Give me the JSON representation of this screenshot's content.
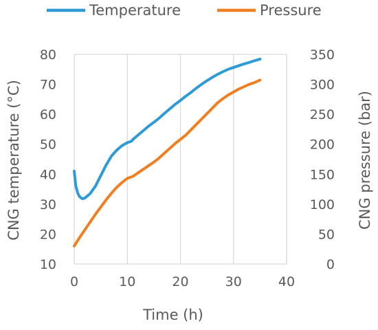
{
  "chart_data": {
    "type": "line",
    "title": "",
    "xlabel": "Time (h)",
    "ylabel": "CNG temperature (°C)",
    "y2label": "CNG pressure (bar)",
    "xlim": [
      0,
      40
    ],
    "ylim": [
      10,
      80
    ],
    "y2lim": [
      0,
      350
    ],
    "xticks": [
      "0",
      "10",
      "20",
      "30",
      "40"
    ],
    "yticks": [
      "10",
      "20",
      "30",
      "40",
      "50",
      "60",
      "70",
      "80"
    ],
    "y2ticks": [
      "0",
      "50",
      "100",
      "150",
      "200",
      "250",
      "300",
      "350"
    ],
    "grid": "vertical",
    "legend_position": "top",
    "series": [
      {
        "name": "Temperature",
        "axis": "left",
        "color": "#2e9ad6",
        "x": [
          0,
          0.3,
          0.7,
          1,
          1.5,
          2,
          3,
          4,
          5,
          6,
          7,
          8,
          9,
          10,
          10.8,
          11,
          12,
          13,
          14,
          15,
          16,
          17,
          18,
          19,
          20,
          21,
          22,
          23,
          24,
          25,
          26,
          27,
          28,
          29,
          30,
          31,
          32,
          33,
          34,
          35
        ],
        "y": [
          41,
          36,
          33.5,
          32.5,
          31.8,
          32,
          33.5,
          36,
          39.5,
          43,
          46,
          48,
          49.5,
          50.5,
          51,
          51.5,
          53,
          54.5,
          56,
          57.3,
          58.7,
          60.3,
          61.8,
          63.3,
          64.6,
          66,
          67.3,
          68.7,
          70,
          71.2,
          72.3,
          73.3,
          74.2,
          75,
          75.6,
          76.2,
          76.8,
          77.3,
          77.9,
          78.4
        ]
      },
      {
        "name": "Pressure",
        "axis": "right",
        "color": "#f07f22",
        "x": [
          0,
          1,
          2,
          3,
          4,
          5,
          6,
          7,
          8,
          9,
          10,
          11,
          12,
          13,
          14,
          15,
          16,
          17,
          18,
          19,
          20,
          21,
          22,
          23,
          24,
          25,
          26,
          27,
          28,
          29,
          30,
          31,
          32,
          33,
          34,
          35
        ],
        "y": [
          30,
          44,
          57,
          70,
          83,
          95,
          107,
          118,
          128,
          136,
          143,
          146,
          152,
          158,
          164,
          170,
          177,
          185,
          193,
          201,
          208,
          215,
          224,
          233,
          242,
          251,
          260,
          269,
          276,
          282,
          287,
          292,
          296,
          300,
          303,
          307
        ]
      }
    ]
  }
}
